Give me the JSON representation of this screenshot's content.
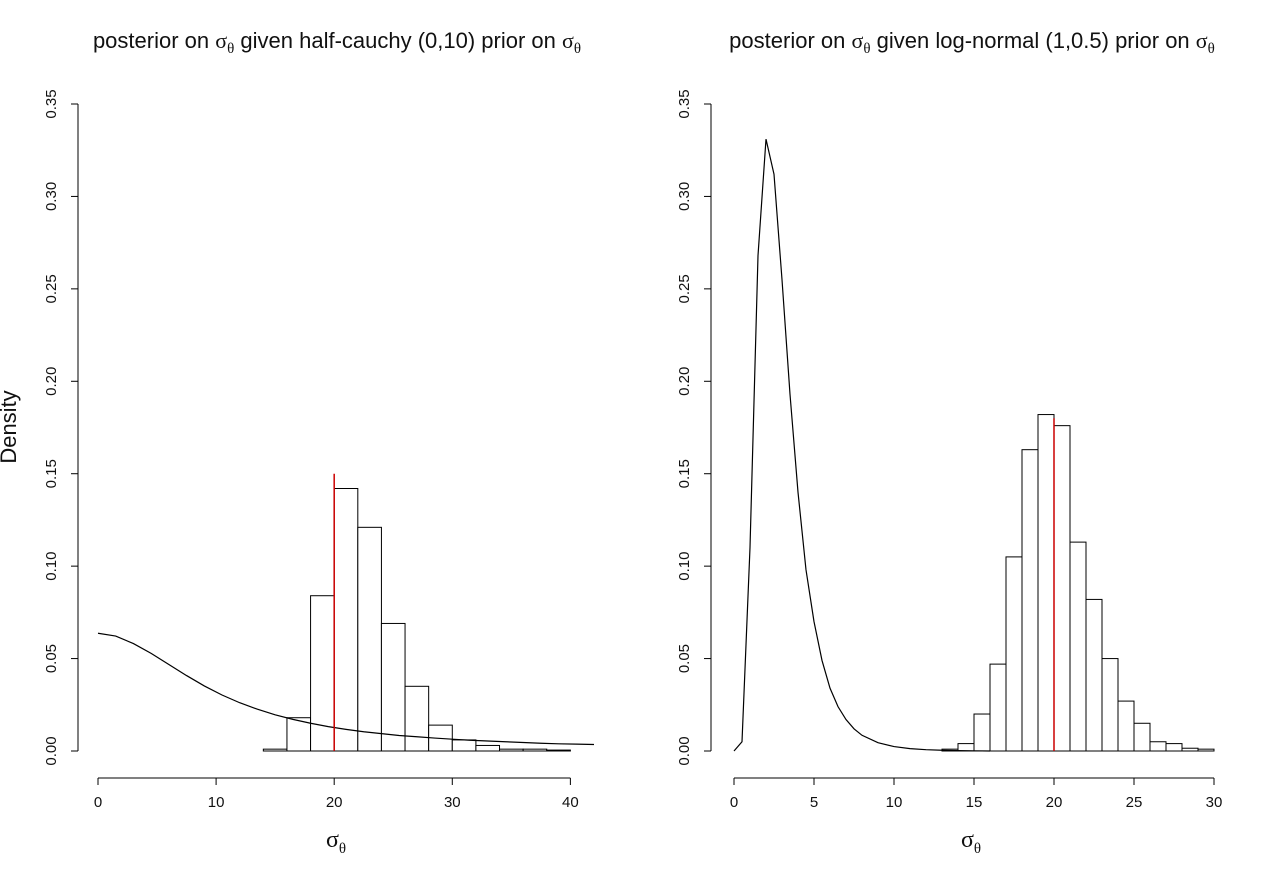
{
  "figure": {
    "ylabel": "Density"
  },
  "chart_data": [
    {
      "type": "histogram",
      "title": {
        "prefix": "posterior on ",
        "sym1": "σ",
        "sub1": "θ",
        "middle": " given half-cauchy (0,10) prior on  ",
        "sym2": "σ",
        "sub2": "θ"
      },
      "xlabel": {
        "sym": "σ",
        "sub": "θ"
      },
      "ylabel": "Density",
      "xlim": [
        0,
        42
      ],
      "ylim": [
        0,
        0.35
      ],
      "xticks": [
        0,
        10,
        20,
        30,
        40
      ],
      "yticks": [
        0.0,
        0.05,
        0.1,
        0.15,
        0.2,
        0.25,
        0.3,
        0.35
      ],
      "ytick_labels": [
        "0.00",
        "0.05",
        "0.10",
        "0.15",
        "0.20",
        "0.25",
        "0.30",
        "0.35"
      ],
      "bins": [
        {
          "x0": 14,
          "x1": 16,
          "density": 0.001
        },
        {
          "x0": 16,
          "x1": 18,
          "density": 0.018
        },
        {
          "x0": 18,
          "x1": 20,
          "density": 0.084
        },
        {
          "x0": 20,
          "x1": 22,
          "density": 0.142
        },
        {
          "x0": 22,
          "x1": 24,
          "density": 0.121
        },
        {
          "x0": 24,
          "x1": 26,
          "density": 0.069
        },
        {
          "x0": 26,
          "x1": 28,
          "density": 0.035
        },
        {
          "x0": 28,
          "x1": 30,
          "density": 0.014
        },
        {
          "x0": 30,
          "x1": 32,
          "density": 0.006
        },
        {
          "x0": 32,
          "x1": 34,
          "density": 0.003
        },
        {
          "x0": 34,
          "x1": 36,
          "density": 0.001
        },
        {
          "x0": 36,
          "x1": 38,
          "density": 0.001
        },
        {
          "x0": 38,
          "x1": 40,
          "density": 0.0005
        }
      ],
      "prior_curve": {
        "name": "half-cauchy (0,10) prior density",
        "x": [
          0,
          1.5,
          3,
          4.5,
          6,
          7.5,
          9,
          10.5,
          12,
          13.5,
          15,
          16.5,
          18,
          19.5,
          21,
          22.5,
          24,
          25.5,
          27,
          28.5,
          30,
          31.5,
          33,
          34.5,
          36,
          37.5,
          39,
          40.5,
          42
        ],
        "y": [
          0.0637,
          0.0622,
          0.0581,
          0.0528,
          0.0468,
          0.0408,
          0.0352,
          0.0303,
          0.0261,
          0.0226,
          0.0196,
          0.0171,
          0.015,
          0.0132,
          0.0117,
          0.0104,
          0.0094,
          0.0084,
          0.0077,
          0.007,
          0.0064,
          0.0058,
          0.0054,
          0.005,
          0.0046,
          0.0042,
          0.0039,
          0.0037,
          0.0035
        ]
      },
      "true_value_line": {
        "x": 20,
        "y_top": 0.15,
        "color": "#cc0000"
      }
    },
    {
      "type": "histogram",
      "title": {
        "prefix": "posterior on ",
        "sym1": "σ",
        "sub1": "θ",
        "middle": " given log-normal (1,0.5) prior on ",
        "sym2": "σ",
        "sub2": "θ"
      },
      "xlabel": {
        "sym": "σ",
        "sub": "θ"
      },
      "ylabel": "",
      "xlim": [
        0,
        31
      ],
      "ylim": [
        0,
        0.35
      ],
      "xticks": [
        0,
        5,
        10,
        15,
        20,
        25,
        30
      ],
      "yticks": [
        0.0,
        0.05,
        0.1,
        0.15,
        0.2,
        0.25,
        0.3,
        0.35
      ],
      "ytick_labels": [
        "0.00",
        "0.05",
        "0.10",
        "0.15",
        "0.20",
        "0.25",
        "0.30",
        "0.35"
      ],
      "bins": [
        {
          "x0": 13,
          "x1": 14,
          "density": 0.001
        },
        {
          "x0": 14,
          "x1": 15,
          "density": 0.004
        },
        {
          "x0": 15,
          "x1": 16,
          "density": 0.02
        },
        {
          "x0": 16,
          "x1": 17,
          "density": 0.047
        },
        {
          "x0": 17,
          "x1": 18,
          "density": 0.105
        },
        {
          "x0": 18,
          "x1": 19,
          "density": 0.163
        },
        {
          "x0": 19,
          "x1": 20,
          "density": 0.182
        },
        {
          "x0": 20,
          "x1": 21,
          "density": 0.176
        },
        {
          "x0": 21,
          "x1": 22,
          "density": 0.113
        },
        {
          "x0": 22,
          "x1": 23,
          "density": 0.082
        },
        {
          "x0": 23,
          "x1": 24,
          "density": 0.05
        },
        {
          "x0": 24,
          "x1": 25,
          "density": 0.027
        },
        {
          "x0": 25,
          "x1": 26,
          "density": 0.015
        },
        {
          "x0": 26,
          "x1": 27,
          "density": 0.005
        },
        {
          "x0": 27,
          "x1": 28,
          "density": 0.004
        },
        {
          "x0": 28,
          "x1": 29,
          "density": 0.0015
        },
        {
          "x0": 29,
          "x1": 30,
          "density": 0.001
        }
      ],
      "prior_curve": {
        "name": "log-normal (1,0.5) prior density",
        "x": [
          0,
          0.5,
          1.0,
          1.5,
          2.0,
          2.5,
          3.0,
          3.5,
          4.0,
          4.5,
          5.0,
          5.5,
          6.0,
          6.5,
          7.0,
          7.5,
          8.0,
          9.0,
          10.0,
          11.0,
          12.0,
          13.0,
          14.0,
          15.0,
          16.0
        ],
        "y": [
          0.0,
          0.005,
          0.11,
          0.268,
          0.331,
          0.312,
          0.255,
          0.193,
          0.14,
          0.098,
          0.07,
          0.049,
          0.034,
          0.024,
          0.017,
          0.012,
          0.0085,
          0.0045,
          0.0024,
          0.0013,
          0.0007,
          0.0004,
          0.0002,
          0.0001,
          0.0
        ]
      },
      "true_value_line": {
        "x": 20,
        "y_top": 0.18,
        "color": "#cc0000"
      }
    }
  ]
}
